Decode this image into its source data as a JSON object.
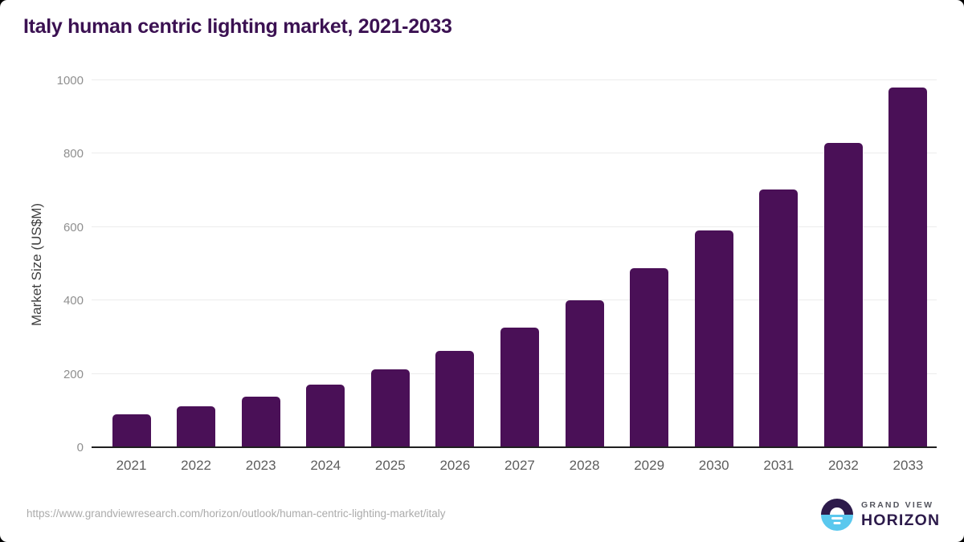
{
  "page": {
    "title": "Italy human centric lighting market, 2021-2033",
    "source_url": "https://www.grandviewresearch.com/horizon/outlook/human-centric-lighting-market/italy"
  },
  "chart_data": {
    "type": "bar",
    "title": "Italy human centric lighting market, 2021-2033",
    "categories": [
      "2021",
      "2022",
      "2023",
      "2024",
      "2025",
      "2026",
      "2027",
      "2028",
      "2029",
      "2030",
      "2031",
      "2032",
      "2033"
    ],
    "values": [
      88,
      110,
      136,
      168,
      211,
      261,
      323,
      398,
      486,
      588,
      700,
      828,
      978
    ],
    "xlabel": "",
    "ylabel": "Market Size (US$M)",
    "ylim": [
      0,
      1000
    ],
    "yticks": [
      0,
      200,
      400,
      600,
      800,
      1000
    ],
    "grid": true,
    "legend": "none",
    "bar_color": "#4a1057"
  },
  "colors": {
    "bar": "#4a1057",
    "title": "#3b1152",
    "axis_line": "#1f1f1f",
    "gridline": "#ececec",
    "ytick_text": "#8f8f8f",
    "xtick_text": "#5d5d5d",
    "axis_label": "#3f3f3f",
    "url_text": "#ababab",
    "logo_dark": "#2d1b4b",
    "logo_blue": "#5ac8ee",
    "logo_gray": "#54555e"
  },
  "logo": {
    "brand_top": "GRAND VIEW",
    "brand_bottom": "HORIZON"
  }
}
